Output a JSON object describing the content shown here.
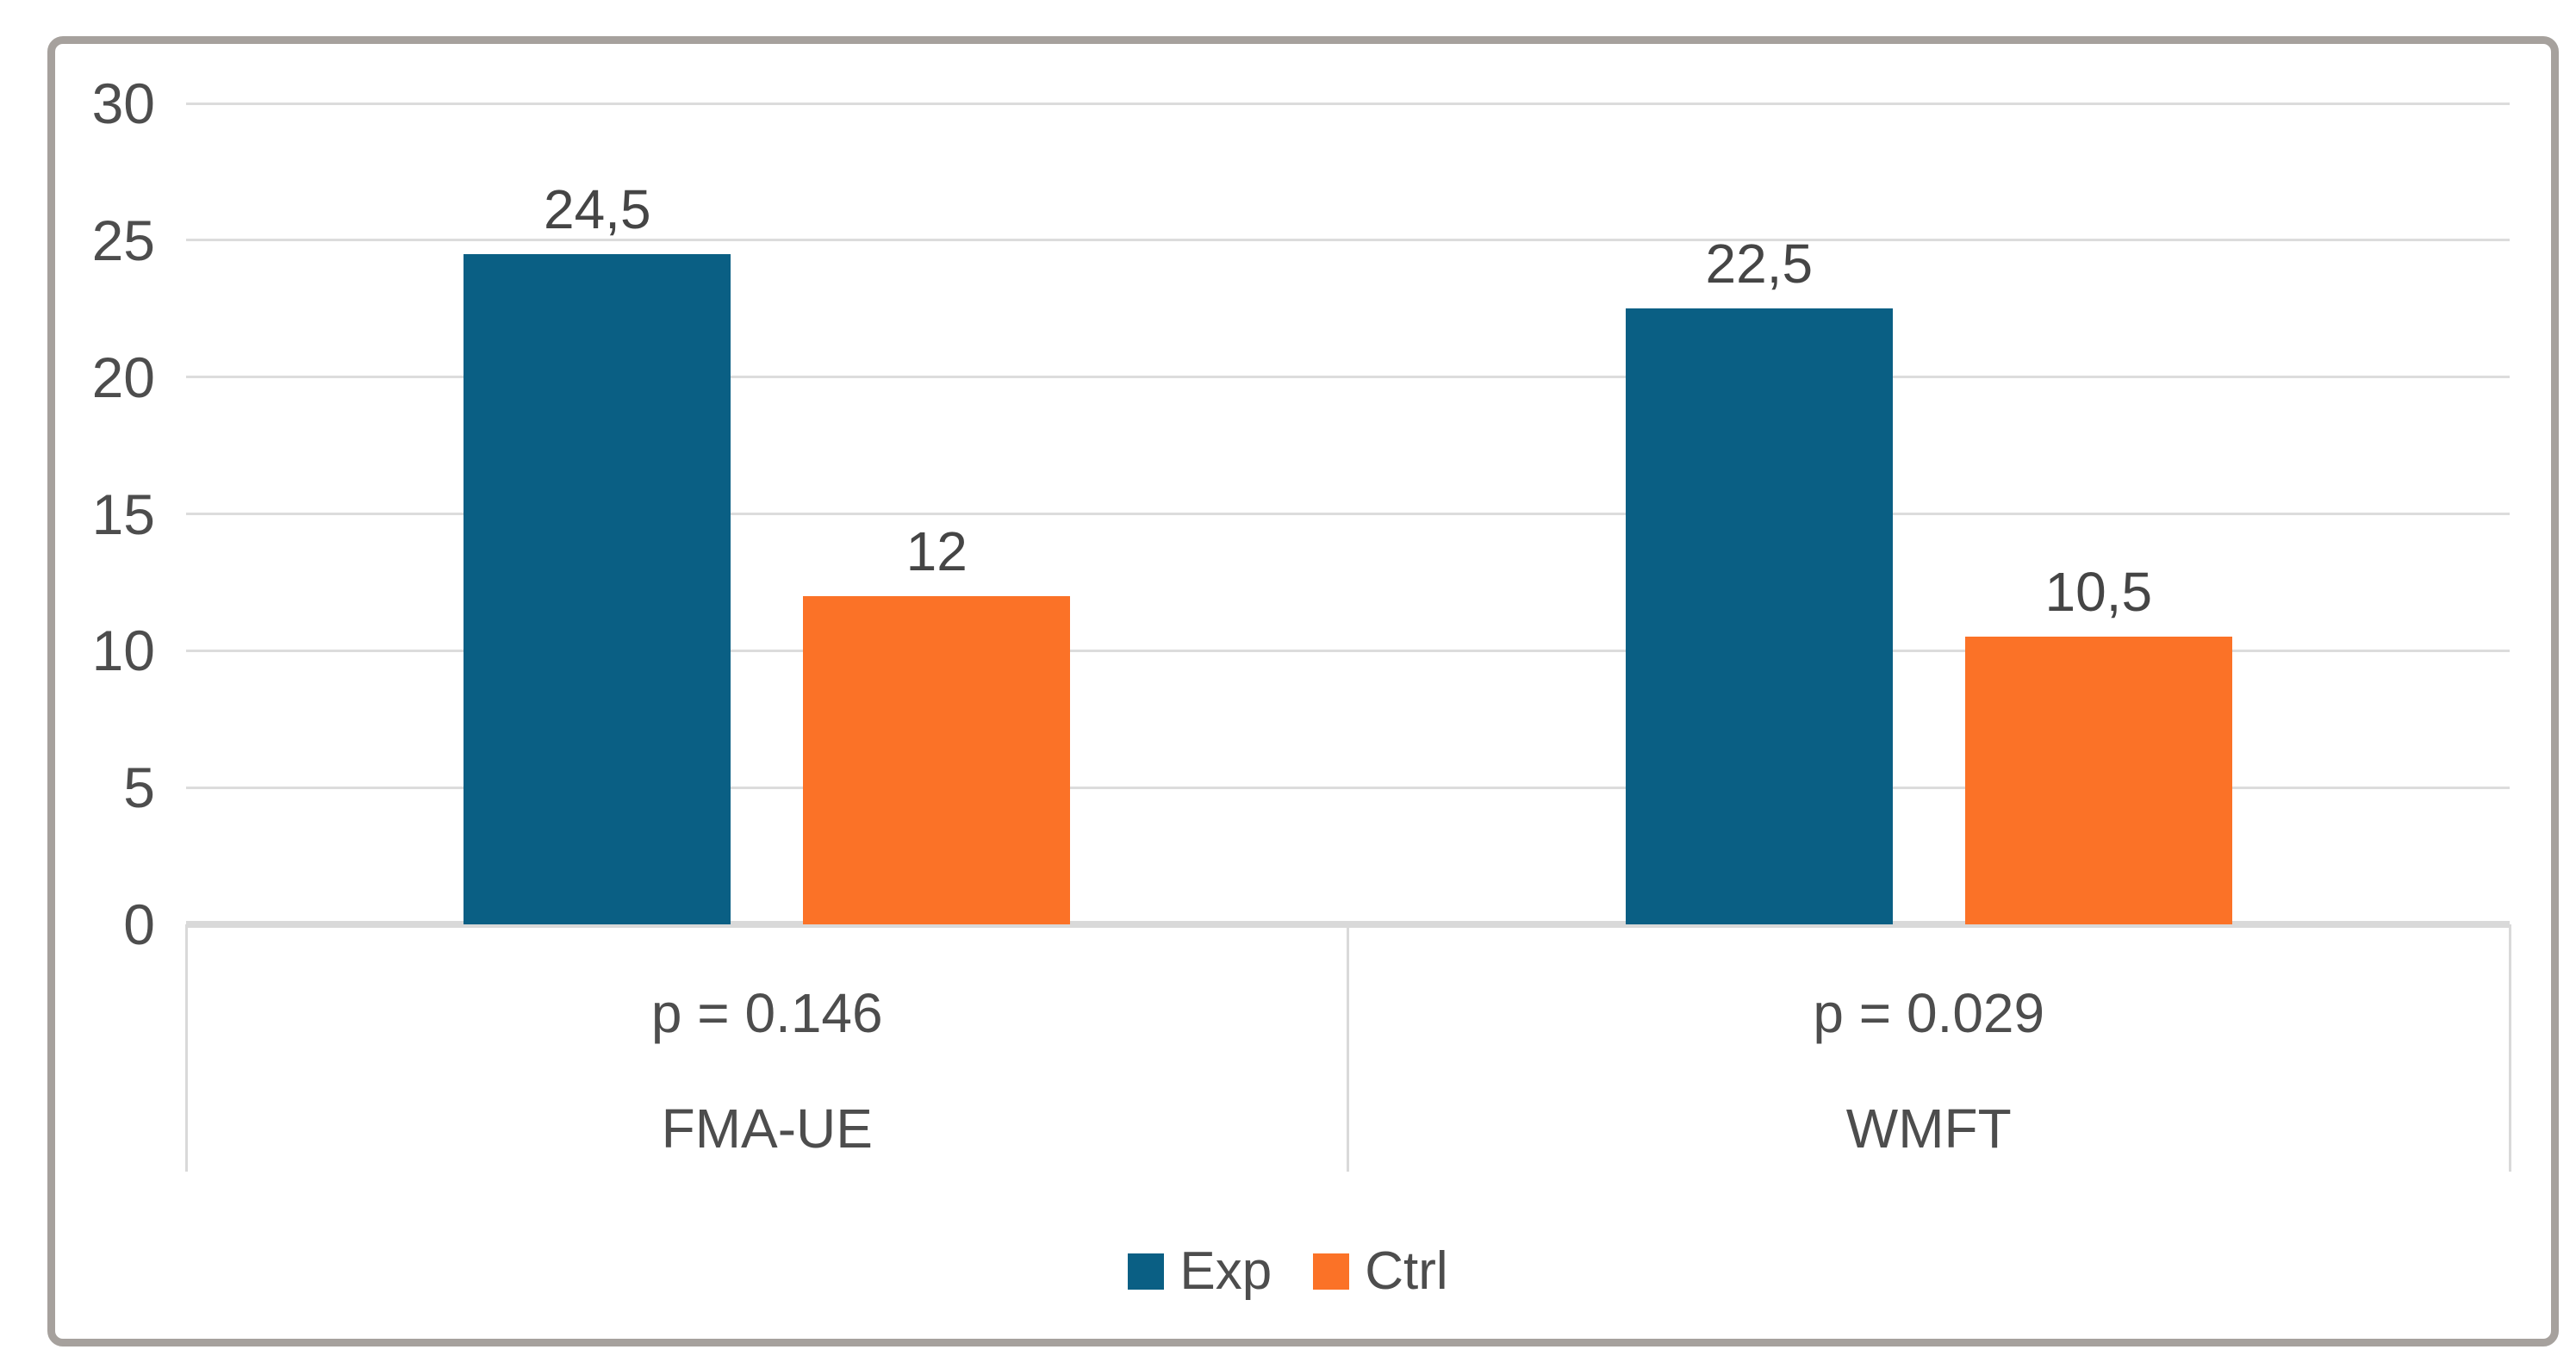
{
  "chart_data": {
    "type": "bar",
    "title": "",
    "categories": [
      "FMA-UE",
      "WMFT"
    ],
    "category_annotations": [
      "p = 0.146",
      "p = 0.029"
    ],
    "series": [
      {
        "name": "Exp",
        "color": "#0A5F84",
        "values": [
          24.5,
          22.5
        ],
        "value_labels": [
          "24,5",
          "22,5"
        ]
      },
      {
        "name": "Ctrl",
        "color": "#FB7227",
        "values": [
          12,
          10.5
        ],
        "value_labels": [
          "12",
          "10,5"
        ]
      }
    ],
    "ylim": [
      0,
      30
    ],
    "ytick_interval": 5,
    "ytick_labels": [
      "0",
      "5",
      "10",
      "15",
      "20",
      "25",
      "30"
    ],
    "xlabel": "",
    "ylabel": "",
    "grid": "horizontal",
    "legend_position": "bottom-center",
    "value_label_decimal_separator": "comma"
  },
  "styles": {
    "bar_exp_color": "#0A5F84",
    "bar_ctrl_color": "#FB7227",
    "grid_color": "#DCDCDC",
    "axis_color": "#D9D9D9",
    "text_color": "#4D4D4D",
    "frame_border_color": "#A6A19D",
    "background_color": "#FFFFFF"
  }
}
